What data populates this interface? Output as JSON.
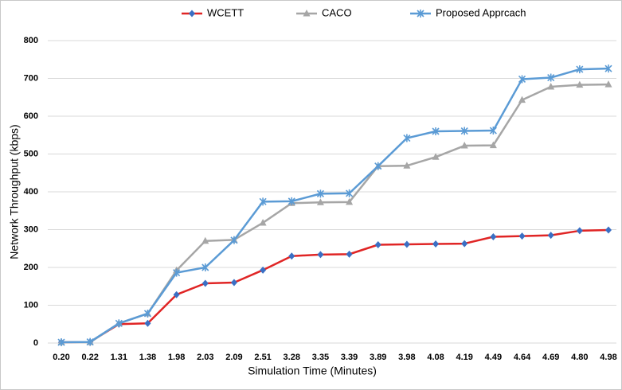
{
  "chart_data": {
    "type": "line",
    "x_label": "Simulation Time (Minutes)",
    "y_label": "Network Throughput (kbps)",
    "categories": [
      "0.20",
      "0.22",
      "1.31",
      "1.38",
      "1.98",
      "2.03",
      "2.09",
      "2.51",
      "3.28",
      "3.35",
      "3.39",
      "3.89",
      "3.98",
      "4.08",
      "4.19",
      "4.49",
      "4.64",
      "4.69",
      "4.80",
      "4.98"
    ],
    "series": [
      {
        "name": "WCETT",
        "color": "#e02525",
        "marker_color": "#3a6fc4",
        "marker": "diamond",
        "values": [
          2,
          3,
          50,
          52,
          128,
          158,
          160,
          193,
          230,
          234,
          235,
          260,
          261,
          262,
          263,
          281,
          283,
          285,
          297,
          299
        ]
      },
      {
        "name": "CACO",
        "color": "#a6a6a6",
        "marker": "triangle",
        "values": [
          2,
          2,
          52,
          78,
          192,
          270,
          273,
          318,
          370,
          372,
          373,
          468,
          469,
          492,
          522,
          523,
          643,
          678,
          683,
          684
        ]
      },
      {
        "name": "Proposed Apprcach",
        "color": "#5b9bd5",
        "marker": "star",
        "values": [
          2,
          3,
          52,
          78,
          186,
          200,
          272,
          374,
          375,
          395,
          396,
          468,
          542,
          560,
          561,
          562,
          698,
          702,
          724,
          726
        ]
      }
    ],
    "ylim": [
      0,
      800
    ],
    "yticks": [
      0,
      100,
      200,
      300,
      400,
      500,
      600,
      700,
      800
    ],
    "grid": true,
    "legend": "top"
  }
}
